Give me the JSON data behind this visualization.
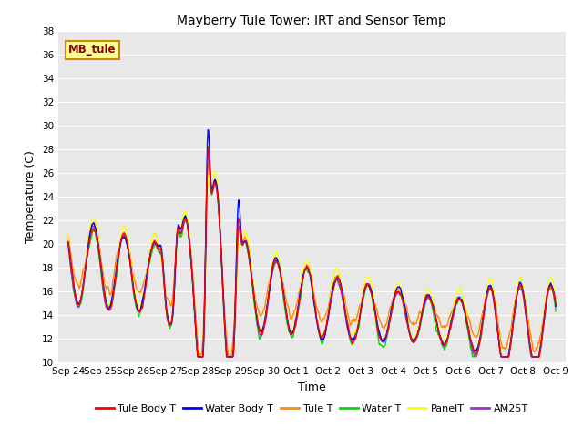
{
  "title": "Mayberry Tule Tower: IRT and Sensor Temp",
  "xlabel": "Time",
  "ylabel": "Temperature (C)",
  "ylim": [
    10,
    38
  ],
  "yticks": [
    10,
    12,
    14,
    16,
    18,
    20,
    22,
    24,
    26,
    28,
    30,
    32,
    34,
    36,
    38
  ],
  "x_labels": [
    "Sep 24",
    "Sep 25",
    "Sep 26",
    "Sep 27",
    "Sep 28",
    "Sep 29",
    "Sep 30",
    "Oct 1",
    "Oct 2",
    "Oct 3",
    "Oct 4",
    "Oct 5",
    "Oct 6",
    "Oct 7",
    "Oct 8",
    "Oct 9"
  ],
  "legend_entries": [
    "Tule Body T",
    "Water Body T",
    "Tule T",
    "Water T",
    "PanelT",
    "AM25T"
  ],
  "legend_colors": [
    "#ff0000",
    "#0000ff",
    "#ff8800",
    "#00dd00",
    "#ffff00",
    "#9933cc"
  ],
  "line_width": 1.0,
  "bg_color": "#e8e8e8",
  "fig_bg_color": "#ffffff",
  "annotation_text": "MB_tule",
  "annotation_bg": "#ffff99",
  "annotation_border": "#cc8800",
  "figsize": [
    6.4,
    4.8
  ],
  "dpi": 100
}
